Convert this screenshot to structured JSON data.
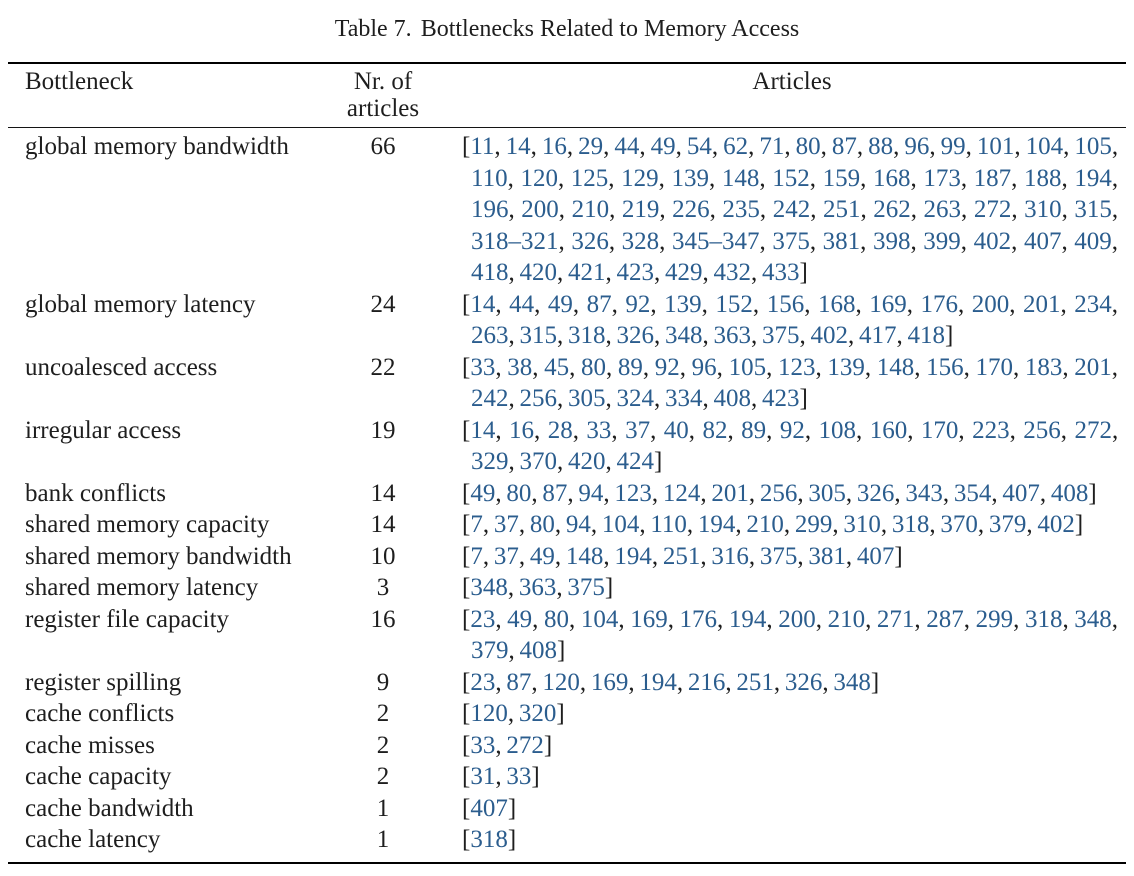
{
  "caption": {
    "label": "Table 7.",
    "text": "Bottlenecks Related to Memory Access"
  },
  "colors": {
    "text": "#1e1e1e",
    "citation_link": "#2b5d8e",
    "rule": "#000000"
  },
  "table": {
    "header": {
      "bottleneck": "Bottleneck",
      "nr_line1": "Nr. of",
      "nr_line2": "articles",
      "articles": "Articles"
    },
    "rows": [
      {
        "bottleneck": "global memory bandwidth",
        "count": "66",
        "articles": [
          "11",
          "14",
          "16",
          "29",
          "44",
          "49",
          "54",
          "62",
          "71",
          "80",
          "87",
          "88",
          "96",
          "99",
          "101",
          "104",
          "105",
          "110",
          "120",
          "125",
          "129",
          "139",
          "148",
          "152",
          "159",
          "168",
          "173",
          "187",
          "188",
          "194",
          "196",
          "200",
          "210",
          "219",
          "226",
          "235",
          "242",
          "251",
          "262",
          "263",
          "272",
          "310",
          "315",
          "318–321",
          "326",
          "328",
          "345–347",
          "375",
          "381",
          "398",
          "399",
          "402",
          "407",
          "409",
          "418",
          "420",
          "421",
          "423",
          "429",
          "432",
          "433"
        ]
      },
      {
        "bottleneck": "global memory latency",
        "count": "24",
        "articles": [
          "14",
          "44",
          "49",
          "87",
          "92",
          "139",
          "152",
          "156",
          "168",
          "169",
          "176",
          "200",
          "201",
          "234",
          "263",
          "315",
          "318",
          "326",
          "348",
          "363",
          "375",
          "402",
          "417",
          "418"
        ]
      },
      {
        "bottleneck": "uncoalesced access",
        "count": "22",
        "articles": [
          "33",
          "38",
          "45",
          "80",
          "89",
          "92",
          "96",
          "105",
          "123",
          "139",
          "148",
          "156",
          "170",
          "183",
          "201",
          "242",
          "256",
          "305",
          "324",
          "334",
          "408",
          "423"
        ]
      },
      {
        "bottleneck": "irregular access",
        "count": "19",
        "articles": [
          "14",
          "16",
          "28",
          "33",
          "37",
          "40",
          "82",
          "89",
          "92",
          "108",
          "160",
          "170",
          "223",
          "256",
          "272",
          "329",
          "370",
          "420",
          "424"
        ]
      },
      {
        "bottleneck": "bank conflicts",
        "count": "14",
        "articles": [
          "49",
          "80",
          "87",
          "94",
          "123",
          "124",
          "201",
          "256",
          "305",
          "326",
          "343",
          "354",
          "407",
          "408"
        ]
      },
      {
        "bottleneck": "shared memory capacity",
        "count": "14",
        "articles": [
          "7",
          "37",
          "80",
          "94",
          "104",
          "110",
          "194",
          "210",
          "299",
          "310",
          "318",
          "370",
          "379",
          "402"
        ]
      },
      {
        "bottleneck": "shared memory bandwidth",
        "count": "10",
        "articles": [
          "7",
          "37",
          "49",
          "148",
          "194",
          "251",
          "316",
          "375",
          "381",
          "407"
        ]
      },
      {
        "bottleneck": "shared memory latency",
        "count": "3",
        "articles": [
          "348",
          "363",
          "375"
        ]
      },
      {
        "bottleneck": "register file capacity",
        "count": "16",
        "articles": [
          "23",
          "49",
          "80",
          "104",
          "169",
          "176",
          "194",
          "200",
          "210",
          "271",
          "287",
          "299",
          "318",
          "348",
          "379",
          "408"
        ]
      },
      {
        "bottleneck": "register spilling",
        "count": "9",
        "articles": [
          "23",
          "87",
          "120",
          "169",
          "194",
          "216",
          "251",
          "326",
          "348"
        ]
      },
      {
        "bottleneck": "cache conflicts",
        "count": "2",
        "articles": [
          "120",
          "320"
        ]
      },
      {
        "bottleneck": "cache misses",
        "count": "2",
        "articles": [
          "33",
          "272"
        ]
      },
      {
        "bottleneck": "cache capacity",
        "count": "2",
        "articles": [
          "31",
          "33"
        ]
      },
      {
        "bottleneck": "cache bandwidth",
        "count": "1",
        "articles": [
          "407"
        ]
      },
      {
        "bottleneck": "cache latency",
        "count": "1",
        "articles": [
          "318"
        ]
      }
    ]
  }
}
